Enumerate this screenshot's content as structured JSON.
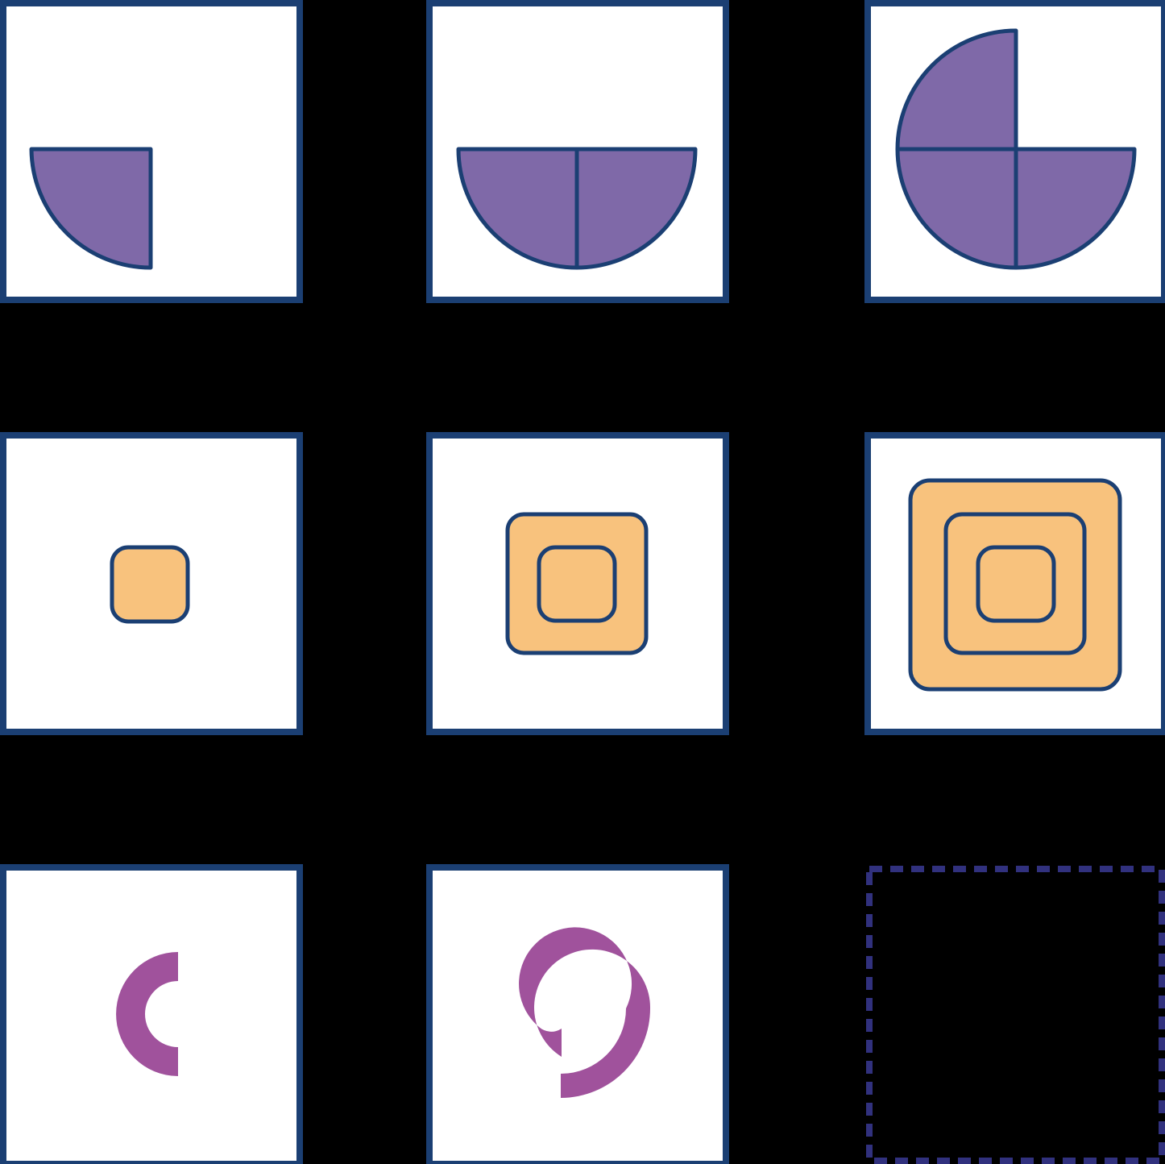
{
  "colors": {
    "background": "#000000",
    "panel_fill": "#FFFFFF",
    "panel_border": "#1B3F73",
    "missing_border": "#31317E",
    "quarter_fill": "#7F69A8",
    "square_fill": "#F8C27D",
    "ring_fill": "#A0529C"
  },
  "puzzle": {
    "rows": [
      {
        "shape": "quarter-circle",
        "cells": [
          {
            "quarters": 1
          },
          {
            "quarters": 2
          },
          {
            "quarters": 3
          }
        ]
      },
      {
        "shape": "nested-rounded-square",
        "cells": [
          {
            "squares": 1
          },
          {
            "squares": 2
          },
          {
            "squares": 3
          }
        ]
      },
      {
        "shape": "ring-arc",
        "cells": [
          {
            "arc": "left-half"
          },
          {
            "arc": "spiral"
          },
          {
            "missing": true
          }
        ]
      }
    ]
  }
}
